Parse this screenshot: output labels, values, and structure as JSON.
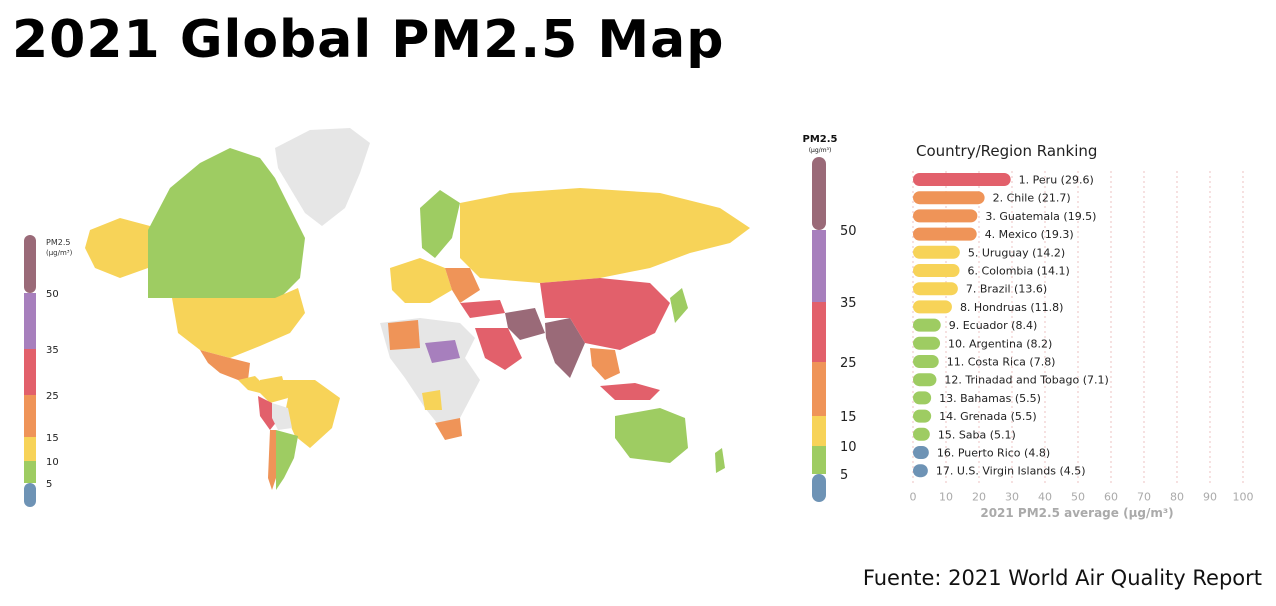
{
  "title": "2021 Global PM2.5 Map",
  "source": "Fuente: 2021 World Air Quality Report",
  "colors": {
    "band_0_5": "#6e93b5",
    "band_5_10": "#9ecc62",
    "band_10_15": "#f7d358",
    "band_15_25": "#ef9458",
    "band_25_35": "#e2606b",
    "band_35_50": "#a77fbd",
    "band_50_plus": "#9a6a78",
    "no_data": "#e6e6e6"
  },
  "legend_small": {
    "title_line1": "PM2.5",
    "title_line2": "(µg/m³)",
    "ticks": [
      "50",
      "35",
      "25",
      "15",
      "10",
      "5"
    ]
  },
  "legend_big": {
    "title_line1": "PM2.5",
    "title_line2": "(µg/m³)",
    "ticks": [
      "50",
      "35",
      "25",
      "15",
      "10",
      "5"
    ]
  },
  "chart_data": {
    "type": "bar",
    "orientation": "horizontal",
    "title": "Country/Region Ranking",
    "xlabel": "2021 PM2.5 average (µg/m³)",
    "xlim": [
      0,
      100
    ],
    "xticks": [
      0,
      10,
      20,
      30,
      40,
      50,
      60,
      70,
      80,
      90,
      100
    ],
    "grid": "vertical dashed",
    "bars": [
      {
        "label": "1. Peru (29.6)",
        "value": 29.6,
        "color": "#e2606b"
      },
      {
        "label": "2. Chile (21.7)",
        "value": 21.7,
        "color": "#ef9458"
      },
      {
        "label": "3. Guatemala (19.5)",
        "value": 19.5,
        "color": "#ef9458"
      },
      {
        "label": "4. Mexico (19.3)",
        "value": 19.3,
        "color": "#ef9458"
      },
      {
        "label": "5. Uruguay (14.2)",
        "value": 14.2,
        "color": "#f7d358"
      },
      {
        "label": "6. Colombia (14.1)",
        "value": 14.1,
        "color": "#f7d358"
      },
      {
        "label": "7. Brazil (13.6)",
        "value": 13.6,
        "color": "#f7d358"
      },
      {
        "label": "8. Hondruas (11.8)",
        "value": 11.8,
        "color": "#f7d358"
      },
      {
        "label": "9. Ecuador (8.4)",
        "value": 8.4,
        "color": "#9ecc62"
      },
      {
        "label": "10. Argentina (8.2)",
        "value": 8.2,
        "color": "#9ecc62"
      },
      {
        "label": "11. Costa Rica (7.8)",
        "value": 7.8,
        "color": "#9ecc62"
      },
      {
        "label": "12. Trinadad and Tobago (7.1)",
        "value": 7.1,
        "color": "#9ecc62"
      },
      {
        "label": "13. Bahamas (5.5)",
        "value": 5.5,
        "color": "#9ecc62"
      },
      {
        "label": "14. Grenada (5.5)",
        "value": 5.5,
        "color": "#9ecc62"
      },
      {
        "label": "15. Saba (5.1)",
        "value": 5.1,
        "color": "#9ecc62"
      },
      {
        "label": "16. Puerto Rico (4.8)",
        "value": 4.8,
        "color": "#6e93b5"
      },
      {
        "label": "17. U.S. Virgin Islands (4.5)",
        "value": 4.5,
        "color": "#6e93b5"
      }
    ]
  }
}
